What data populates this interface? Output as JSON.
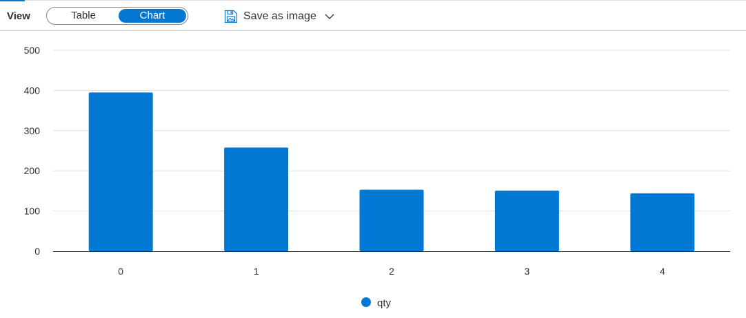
{
  "toolbar": {
    "view_label": "View",
    "view_options": [
      "Table",
      "Chart"
    ],
    "selected_view": "Chart",
    "save_label": "Save as image",
    "save_icon": "save-image-icon",
    "dropdown_icon": "chevron-down-icon"
  },
  "colors": {
    "accent": "#0078d4",
    "grid": "#e1dfdd",
    "axis": "#323130"
  },
  "chart_data": {
    "type": "bar",
    "categories": [
      "0",
      "1",
      "2",
      "3",
      "4"
    ],
    "series": [
      {
        "name": "qty",
        "values": [
          395,
          258,
          153,
          151,
          144
        ],
        "color": "#0078d4"
      }
    ],
    "ylim": [
      0,
      500
    ],
    "yticks": [
      0,
      100,
      200,
      300,
      400,
      500
    ],
    "grid": true,
    "legend": "bottom-center",
    "title": "",
    "xlabel": "",
    "ylabel": ""
  }
}
